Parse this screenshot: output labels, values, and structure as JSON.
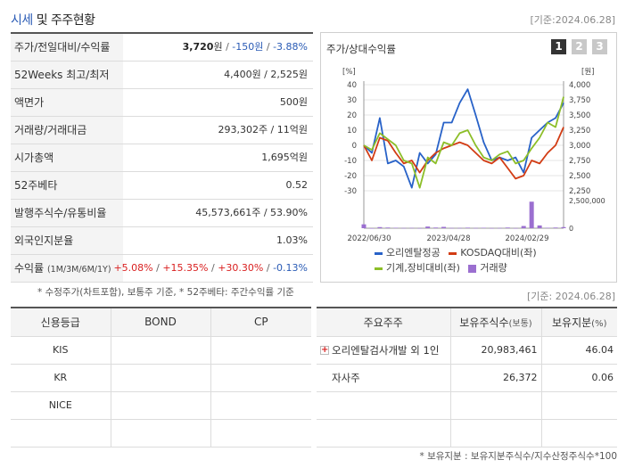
{
  "header": {
    "title_accent": "시세",
    "title_rest": " 및 주주현황",
    "date": "[기준:2024.06.28]"
  },
  "quote_rows": [
    {
      "label": "주가/전일대비/수익률",
      "value_main": "3,720",
      "value_unit": "원",
      "sep1": " / ",
      "value_change": "-150원",
      "sep2": " / ",
      "value_pct": "-3.88%"
    },
    {
      "label": "52Weeks 최고/최저",
      "value": "4,400원 / 2,525원"
    },
    {
      "label": "액면가",
      "value": "500원"
    },
    {
      "label": "거래량/거래대금",
      "value": "293,302주 / 11억원"
    },
    {
      "label": "시가총액",
      "value": "1,695억원"
    },
    {
      "label": "52주베타",
      "value": "0.52"
    },
    {
      "label": "발행주식수/유통비율",
      "value": "45,573,661주 / 53.90%"
    },
    {
      "label": "외국인지분율",
      "value": "1.03%"
    },
    {
      "label": "수익률",
      "label_small": "(1M/3M/6M/1Y)",
      "r1": "+5.08%",
      "r2": "+15.35%",
      "r3": "+30.30%",
      "r4": "-0.13%",
      "sep": "/ "
    }
  ],
  "foot_note": "* 수정주가(차트포함), 보통주 기준, * 52주베타: 주간수익률 기준",
  "chart_panel": {
    "title": "주가/상대수익률",
    "tabs": [
      "1",
      "2",
      "3"
    ],
    "active_tab": 0
  },
  "chart_data": {
    "type": "line",
    "x_ticks": [
      "2022/06/30",
      "2023/04/28",
      "2024/02/29"
    ],
    "left_axis": {
      "label": "[%]",
      "ticks": [
        "40",
        "30",
        "20",
        "10",
        "0",
        "-10",
        "-20",
        "-30"
      ],
      "range": [
        -30,
        40
      ]
    },
    "right_axis": {
      "label": "[원]",
      "ticks": [
        "4,000",
        "3,750",
        "3,500",
        "3,250",
        "3,000",
        "2,750",
        "2,500",
        "2,250"
      ],
      "range": [
        2250,
        4000
      ]
    },
    "volume_axis": {
      "ticks": [
        "2,500,000",
        "0"
      ],
      "range": [
        0,
        2500000
      ]
    },
    "series": [
      {
        "name": "오리엔탈정공",
        "color": "#2862c8",
        "values": [
          0,
          -5,
          18,
          -12,
          -10,
          -14,
          -28,
          -5,
          -12,
          -6,
          15,
          15,
          28,
          37,
          20,
          2,
          -10,
          -8,
          -10,
          -8,
          -18,
          5,
          10,
          15,
          18,
          28
        ]
      },
      {
        "name": "KOSDAQ대비(좌)",
        "color": "#d23c14",
        "values": [
          0,
          -10,
          5,
          3,
          -5,
          -12,
          -10,
          -18,
          -10,
          -5,
          -2,
          0,
          2,
          0,
          -5,
          -10,
          -12,
          -8,
          -15,
          -22,
          -20,
          -10,
          -12,
          -5,
          0,
          12
        ]
      },
      {
        "name": "기계,장비대비(좌)",
        "color": "#8cbe28",
        "values": [
          0,
          -3,
          8,
          4,
          0,
          -10,
          -12,
          -28,
          -8,
          -12,
          2,
          0,
          8,
          10,
          0,
          -8,
          -10,
          -6,
          -4,
          -12,
          -10,
          -2,
          5,
          15,
          12,
          32
        ]
      }
    ],
    "volume": {
      "name": "거래량",
      "color": "#9b6fd0",
      "values": [
        350000,
        0,
        100000,
        60000,
        40000,
        20000,
        30000,
        10000,
        150000,
        60000,
        120000,
        20000,
        20000,
        50000,
        20000,
        40000,
        10000,
        20000,
        60000,
        10000,
        200000,
        2400000,
        250000,
        40000,
        60000,
        100000
      ]
    }
  },
  "date_bottom": "[기준: 2024.06.28]",
  "credit_table": {
    "headers": [
      "신용등급",
      "BOND",
      "CP"
    ],
    "rows": [
      {
        "agency": "KIS",
        "bond": "",
        "cp": ""
      },
      {
        "agency": "KR",
        "bond": "",
        "cp": ""
      },
      {
        "agency": "NICE",
        "bond": "",
        "cp": ""
      },
      {
        "agency": "",
        "bond": "",
        "cp": ""
      }
    ]
  },
  "holder_table": {
    "headers": {
      "holder": "주요주주",
      "shares": "보유주식수",
      "shares_small": "(보통)",
      "ratio": "보유지분",
      "ratio_small": "(%)"
    },
    "rows": [
      {
        "name": "오리엔탈검사개발 외 1인",
        "shares": "20,983,461",
        "ratio": "46.04",
        "expandable": true
      },
      {
        "name": "자사주",
        "shares": "26,372",
        "ratio": "0.06",
        "expandable": false
      },
      {
        "name": "",
        "shares": "",
        "ratio": "",
        "expandable": false
      },
      {
        "name": "",
        "shares": "",
        "ratio": "",
        "expandable": false
      }
    ]
  },
  "bottom_note": "* 보유지분 : 보유지분주식수/지수산정주식수*100"
}
